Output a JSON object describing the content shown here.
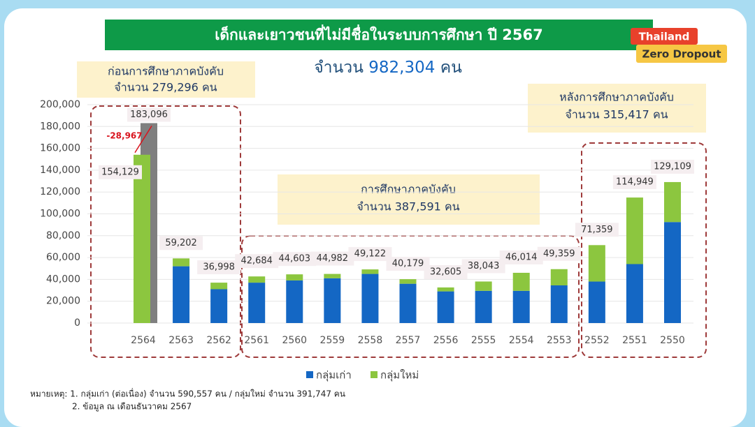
{
  "chart_data": {
    "type": "stacked_bar",
    "title": "เด็กและเยาวชนที่ไม่มีชื่อในระบบการศึกษา ปี 2567",
    "subtitle": {
      "text": "จำนวน",
      "number": "982,304",
      "unit": "คน"
    },
    "logo": {
      "line1": "Thailand",
      "line2": "Zero Dropout"
    },
    "categories": [
      "2564",
      "2563",
      "2562",
      "2561",
      "2560",
      "2559",
      "2558",
      "2557",
      "2556",
      "2555",
      "2554",
      "2553",
      "2552",
      "2551",
      "2550"
    ],
    "series": [
      {
        "name": "กลุ่มเก่า",
        "color": "#1467c4",
        "values": [
          0,
          52000,
          31000,
          37000,
          39000,
          41000,
          45000,
          36000,
          29000,
          29500,
          29500,
          34500,
          38000,
          54000,
          92500
        ]
      },
      {
        "name": "กลุ่มใหม่",
        "color": "#8cc63f",
        "values": [
          154129,
          7202,
          5998,
          5684,
          5603,
          3982,
          4122,
          4179,
          3605,
          8543,
          16514,
          14859,
          33359,
          60949,
          36609
        ]
      }
    ],
    "totals": [
      154129,
      59202,
      36998,
      42684,
      44603,
      44982,
      49122,
      40179,
      32605,
      38043,
      46014,
      49359,
      71359,
      114949,
      129109
    ],
    "total_labels": [
      "154,129",
      "59,202",
      "36,998",
      "42,684",
      "44,603",
      "44,982",
      "49,122",
      "40,179",
      "32,605",
      "38,043",
      "46,014",
      "49,359",
      "71,359",
      "114,949",
      "129,109"
    ],
    "reference_bar": {
      "category_index": 0,
      "value": 183096,
      "label": "183,096",
      "color": "#7f7f7f",
      "difference": -28967,
      "difference_label": "-28,967"
    },
    "groups": [
      {
        "label_line1": "ก่อนการศึกษาภาคบังคับ",
        "label_line2": "จำนวน 279,296 คน"
      },
      {
        "label_line1": "การศึกษาภาคบังคับ",
        "label_line2": "จำนวน 387,591 คน"
      },
      {
        "label_line1": "หลังการศึกษาภาคบังคับ",
        "label_line2": "จำนวน 315,417 คน"
      }
    ],
    "ylim": [
      0,
      200000
    ],
    "yticks": [
      0,
      {
        "value": 20000,
        "label": "20,000"
      },
      {
        "value": 40000,
        "label": "40,000"
      },
      {
        "value": 60000,
        "label": "60,000"
      },
      {
        "value": 80000,
        "label": "80,000"
      },
      {
        "value": 100000,
        "label": "100,000"
      },
      {
        "value": 120000,
        "label": "120,000"
      },
      {
        "value": 140000,
        "label": "140,000"
      },
      {
        "value": 160000,
        "label": "160,000"
      },
      {
        "value": 180000,
        "label": "180,000"
      },
      {
        "value": 200000,
        "label": "200,000"
      }
    ],
    "grid": true,
    "footnote": {
      "line1": "หมายเหตุ: 1. กลุ่มเก่า (ต่อเนื่อง) จำนวน 590,557  คน / กลุ่มใหม่ จำนวน 391,747 คน",
      "line2": "2. ข้อมูล ณ เดือนธันวาคม 2567"
    }
  }
}
